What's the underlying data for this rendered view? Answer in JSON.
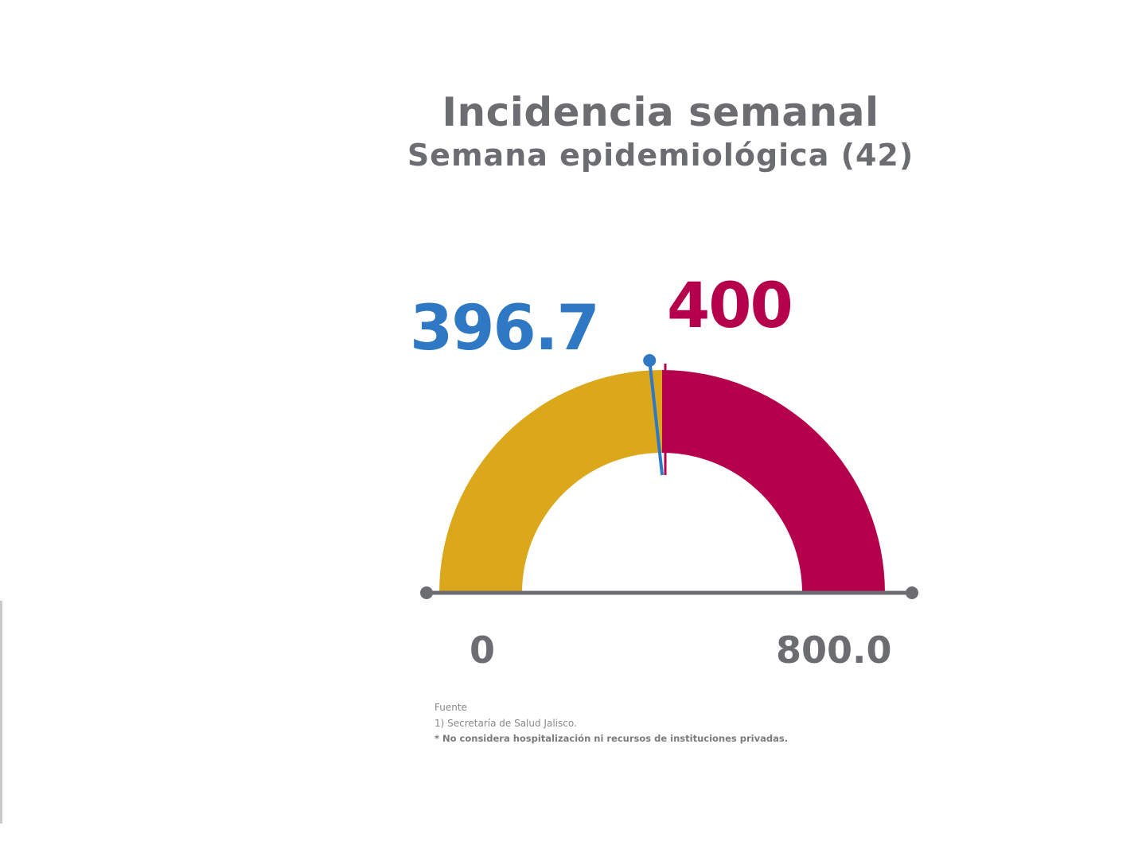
{
  "chart_data": {
    "type": "gauge",
    "title": "Incidencia semanal",
    "subtitle": "Semana epidemiológica (42)",
    "min": 0,
    "max": 800,
    "min_label": "0",
    "max_label": "800.0",
    "value": 396.7,
    "value_label": "396.7",
    "threshold": 400,
    "threshold_label": "400",
    "colors": {
      "below_threshold": "#dca81b",
      "above_threshold": "#b5004b",
      "value": "#2f78c4",
      "axis": "#6c6d70"
    }
  },
  "footnotes": {
    "source_heading": "Fuente",
    "source_line": "1) Secretaría de Salud Jalisco.",
    "note": "* No considera hospitalización ni recursos de instituciones privadas."
  }
}
